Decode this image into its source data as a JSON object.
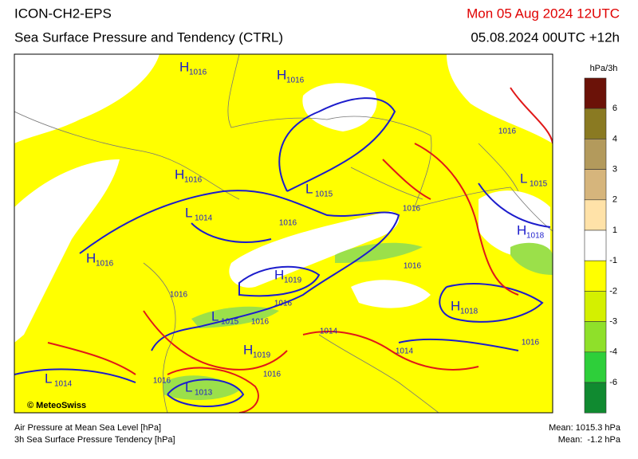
{
  "header": {
    "model": "ICON-CH2-EPS",
    "product": "Sea Surface Pressure and Tendency (CTRL)",
    "valid_time": "Mon 05 Aug 2024 12UTC",
    "run": "05.08.2024 00UTC +12h"
  },
  "colorbar": {
    "unit": "hPa/3h",
    "labels": [
      "6",
      "4",
      "3",
      "2",
      "1",
      "-1",
      "-2",
      "-3",
      "-4",
      "-6"
    ]
  },
  "map": {
    "credit": "© MeteoSwiss",
    "pressure_centers": [
      {
        "symbol": "H",
        "value": "1016"
      },
      {
        "symbol": "H",
        "value": "1016"
      },
      {
        "symbol": "H",
        "value": "1016"
      },
      {
        "symbol": "L",
        "value": "1015"
      },
      {
        "symbol": "L",
        "value": "1014"
      },
      {
        "symbol": "L",
        "value": "1015"
      },
      {
        "symbol": "H",
        "value": "1018"
      },
      {
        "symbol": "H",
        "value": "1016"
      },
      {
        "symbol": "H",
        "value": "1019"
      },
      {
        "symbol": "L",
        "value": "1015"
      },
      {
        "symbol": "H",
        "value": "1019"
      },
      {
        "symbol": "H",
        "value": "1018"
      },
      {
        "symbol": "L",
        "value": "1014"
      },
      {
        "symbol": "L",
        "value": "1013"
      }
    ],
    "isobar_labels": [
      "1016",
      "1016",
      "1016",
      "1016",
      "1016",
      "1016",
      "1016",
      "1014",
      "1016",
      "1016",
      "1014",
      "1016"
    ]
  },
  "footer": {
    "left": [
      "Air Pressure at Mean Sea Level [hPa]",
      "3h Sea Surface Pressure Tendency [hPa]"
    ],
    "right": [
      "Mean: 1015.3 hPa",
      "Mean:  -1.2 hPa"
    ]
  }
}
